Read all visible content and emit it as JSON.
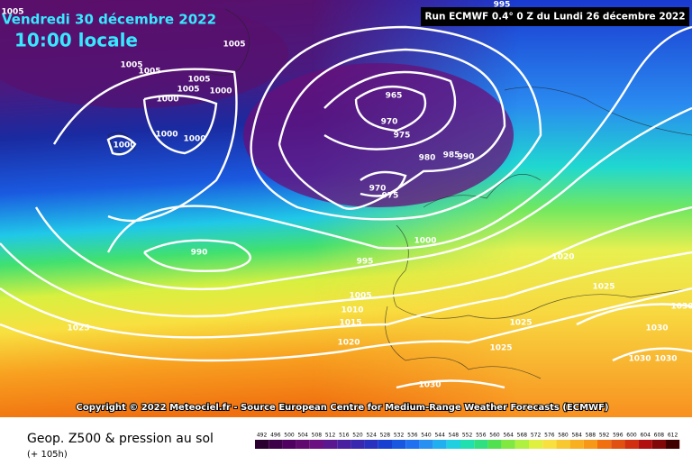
{
  "header": {
    "date": "Vendredi 30 décembre 2022",
    "time": "10:00 locale",
    "run": "Run ECMWF 0.4° 0 Z du Lundi 26 décembre 2022"
  },
  "isobar_labels": [
    "1005",
    "995",
    "1005",
    "1005",
    "1005",
    "1005",
    "1005",
    "1000",
    "1000",
    "1000",
    "1000",
    "1000",
    "965",
    "970",
    "975",
    "980",
    "985",
    "990",
    "970",
    "975",
    "1000",
    "990",
    "995",
    "1005",
    "1010",
    "1015",
    "1020",
    "1025",
    "1020",
    "1025",
    "1025",
    "1025",
    "1030",
    "1030",
    "1030",
    "1030",
    "1030"
  ],
  "copyright": "Copyright © 2022 Meteociel.fr - Source European Centre for Medium-Range Weather Forecasts (ECMWF)",
  "footer": {
    "title": "Geop. Z500 & pression au sol",
    "lead": "(+ 105h)"
  },
  "scale": {
    "labels": [
      492,
      496,
      500,
      504,
      508,
      512,
      516,
      520,
      524,
      528,
      532,
      536,
      540,
      544,
      548,
      552,
      556,
      560,
      564,
      568,
      572,
      576,
      580,
      584,
      588,
      592,
      596,
      600,
      604,
      608,
      612
    ]
  }
}
